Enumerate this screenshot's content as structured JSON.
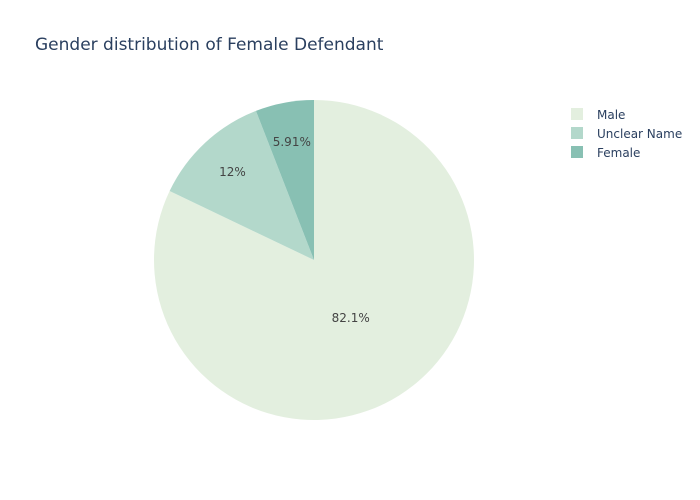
{
  "chart_data": {
    "type": "pie",
    "title": "Gender distribution of Female Defendant",
    "slices": [
      {
        "label": "Male",
        "value": 82.1,
        "text": "82.1%",
        "color": "#e3efdf"
      },
      {
        "label": "Unclear Name",
        "value": 12,
        "text": "12%",
        "color": "#b3d8cb"
      },
      {
        "label": "Female",
        "value": 5.91,
        "text": "5.91%",
        "color": "#88c0b3"
      }
    ],
    "legend_position": "top-right",
    "direction": "clockwise",
    "start_angle": "top"
  }
}
